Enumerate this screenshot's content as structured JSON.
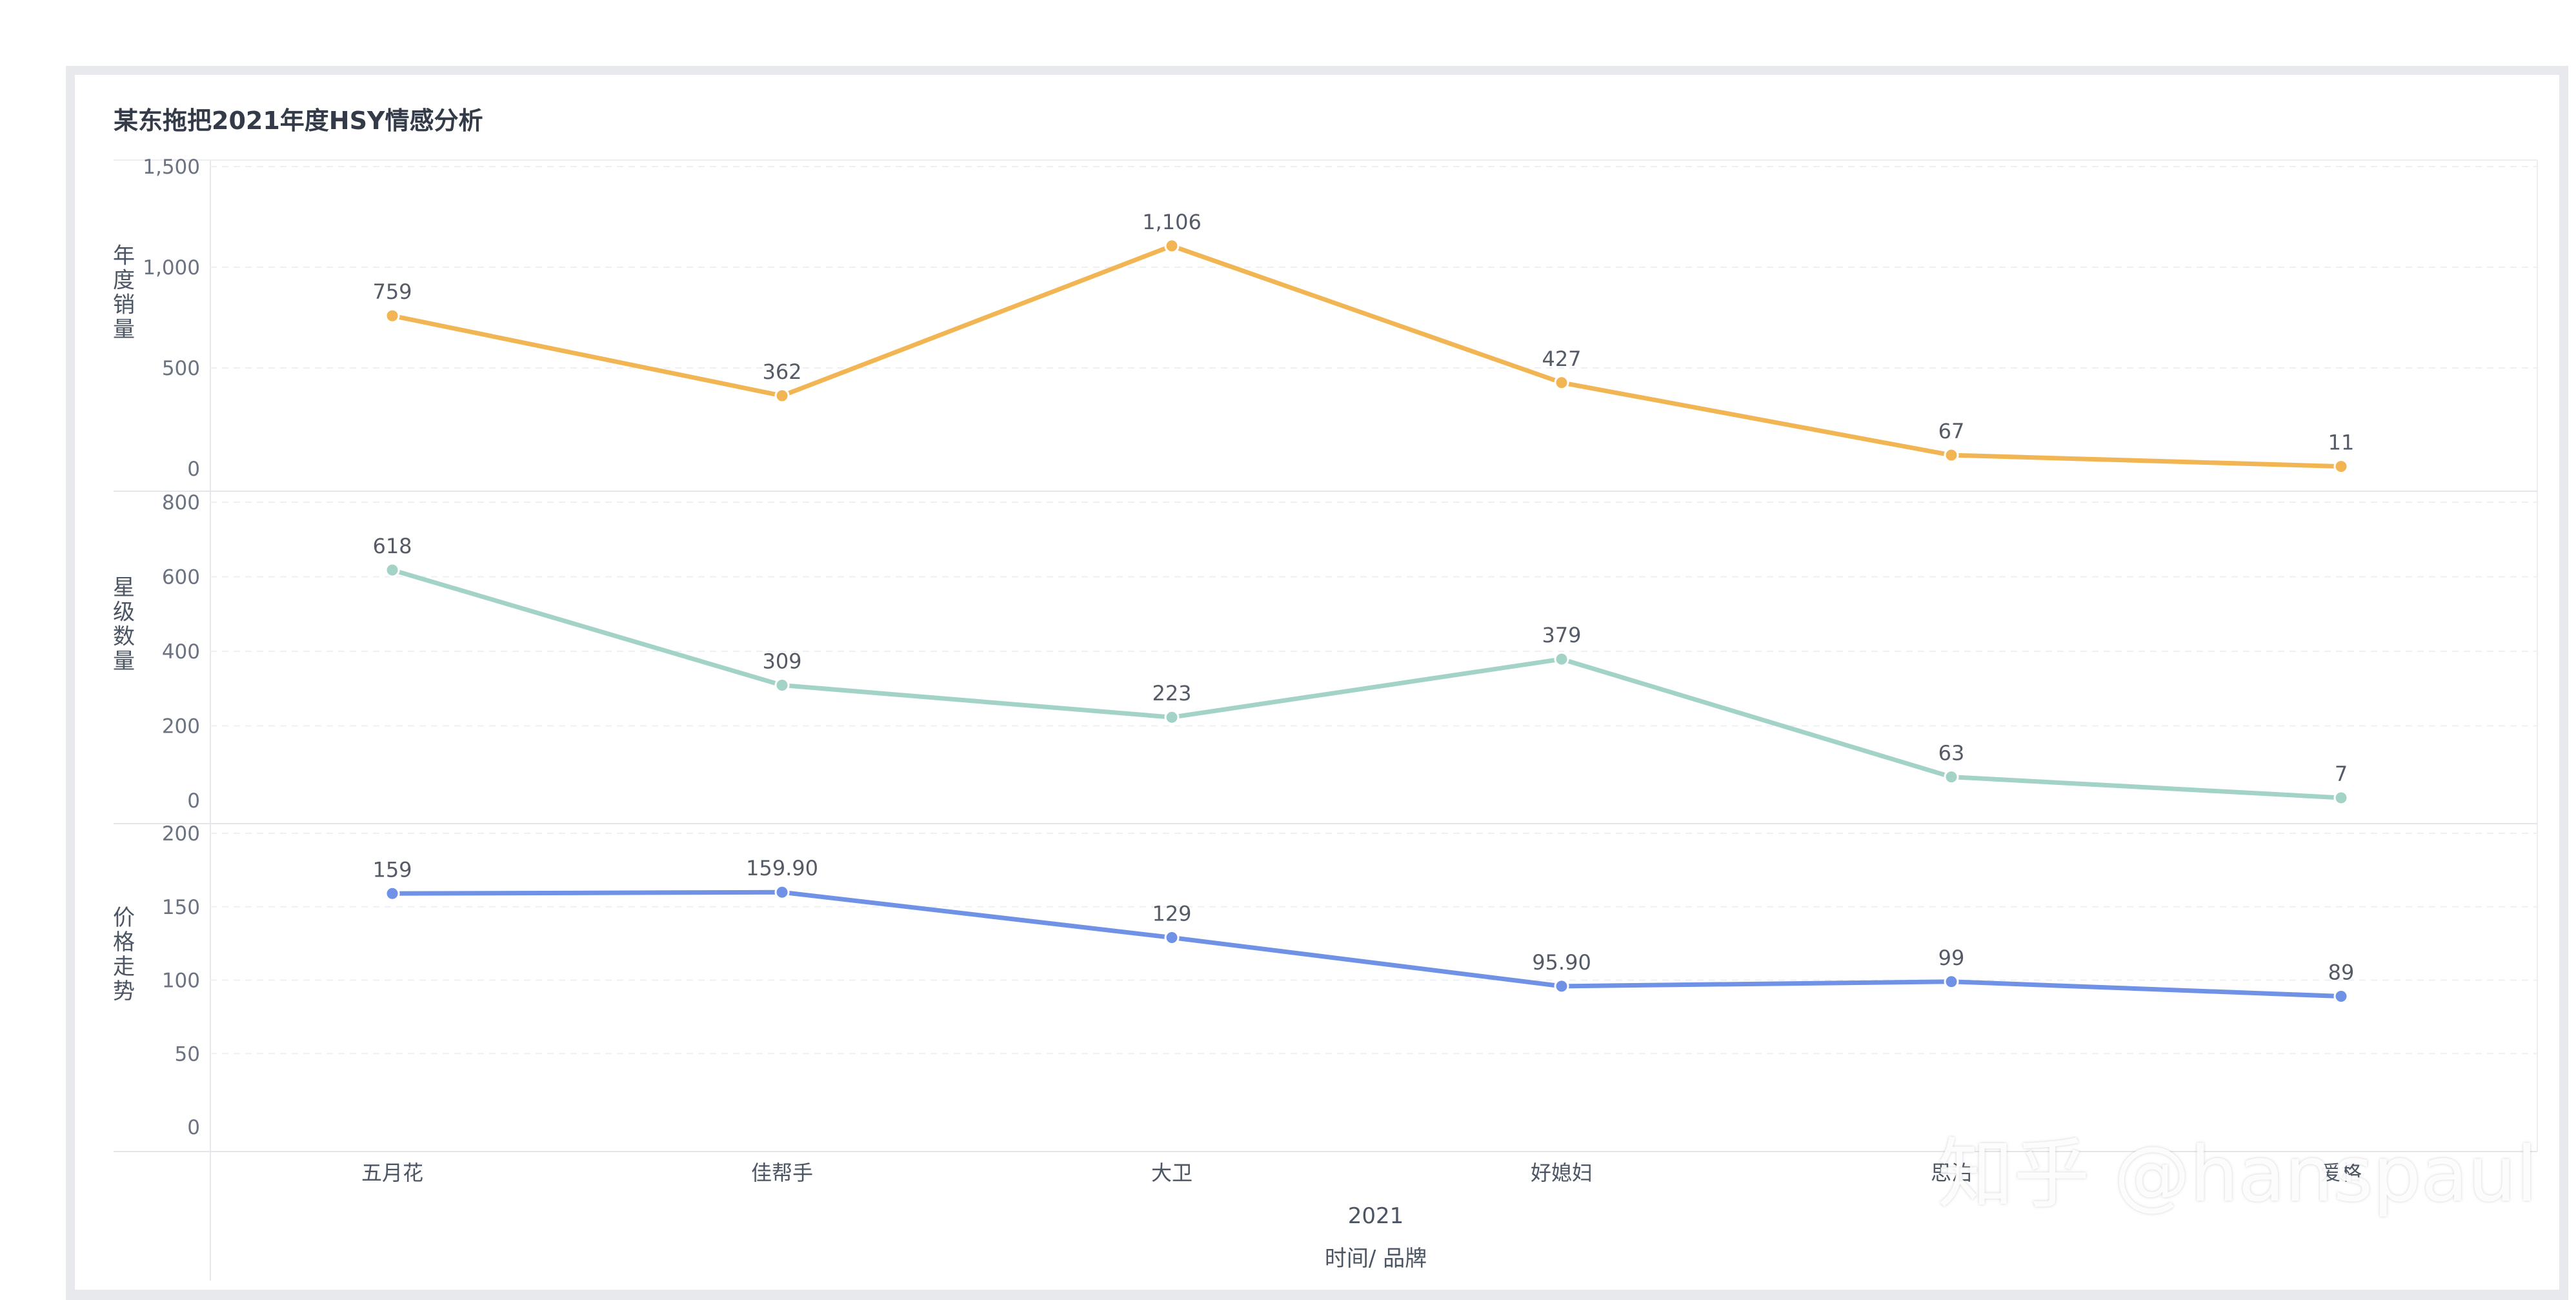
{
  "title": "某东拖把2021年度HSY情感分析",
  "watermark": "知乎 @hanspaul",
  "chart_data": {
    "type": "line",
    "categories": [
      "五月花",
      "佳帮手",
      "大卫",
      "好媳妇",
      "思泊",
      "爱格"
    ],
    "x_group_label": "2021",
    "xlabel": "时间/ 品牌",
    "grid": true,
    "panels": [
      {
        "ylabel": "年度销量",
        "ylim": [
          0,
          1500
        ],
        "ticks": [
          0,
          500,
          1000,
          1500
        ],
        "tick_labels": [
          "0",
          "500",
          "1,000",
          "1,500"
        ],
        "color": "#f2b553",
        "values": [
          759,
          362,
          1106,
          427,
          67,
          11
        ],
        "value_labels": [
          "759",
          "362",
          "1,106",
          "427",
          "67",
          "11"
        ]
      },
      {
        "ylabel": "星级数量",
        "ylim": [
          0,
          800
        ],
        "ticks": [
          0,
          200,
          400,
          600,
          800
        ],
        "tick_labels": [
          "0",
          "200",
          "400",
          "600",
          "800"
        ],
        "color": "#a3d2c6",
        "values": [
          618,
          309,
          223,
          379,
          63,
          7
        ],
        "value_labels": [
          "618",
          "309",
          "223",
          "379",
          "63",
          "7"
        ]
      },
      {
        "ylabel": "价格走势",
        "ylim": [
          0,
          200
        ],
        "ticks": [
          0,
          50,
          100,
          150,
          200
        ],
        "tick_labels": [
          "0",
          "50",
          "100",
          "150",
          "200"
        ],
        "color": "#6f91e6",
        "values": [
          159,
          159.9,
          129,
          95.9,
          99,
          89
        ],
        "value_labels": [
          "159",
          "159.90",
          "129",
          "95.90",
          "99",
          "89"
        ]
      }
    ]
  }
}
